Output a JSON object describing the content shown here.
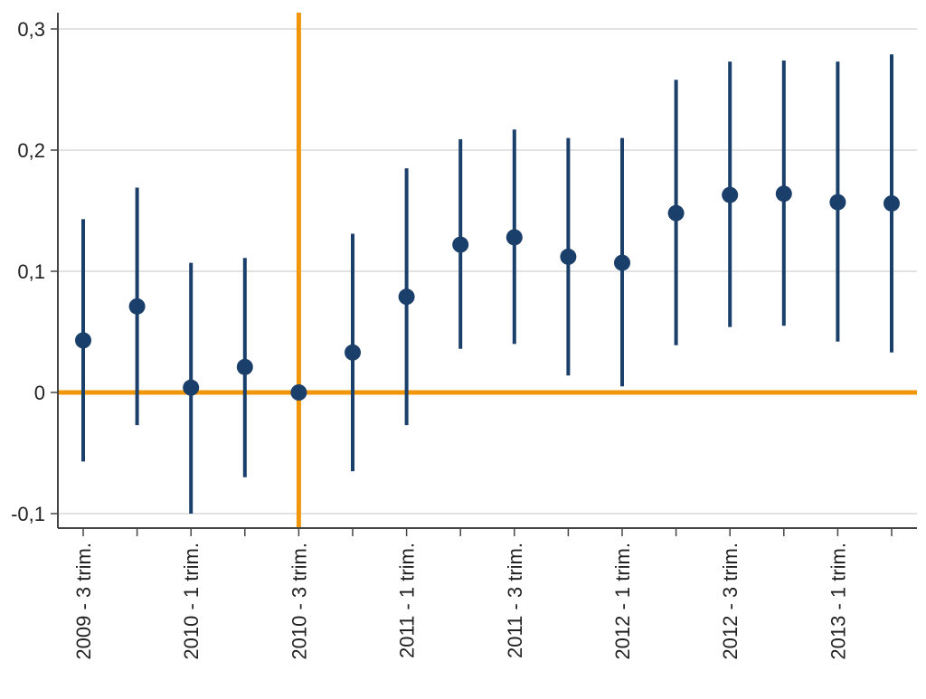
{
  "chart_data": {
    "type": "scatter",
    "subtype": "point-estimates-with-confidence-intervals",
    "title": "",
    "xlabel": "",
    "ylabel": "",
    "ylim": [
      -0.11,
      0.31
    ],
    "yticks": [
      -0.1,
      0,
      0.1,
      0.2,
      0.3
    ],
    "ytick_labels": [
      "-0,1",
      "0",
      "0,1",
      "0,2",
      "0,3"
    ],
    "grid": "horizontal",
    "legend": "none",
    "categories": [
      "2009 - 3 trim.",
      "2009 - 4 trim.",
      "2010 - 1 trim.",
      "2010 - 2 trim.",
      "2010 - 3 trim.",
      "2010 - 4 trim.",
      "2011 - 1 trim.",
      "2011 - 2 trim.",
      "2011 - 3 trim.",
      "2011 - 4 trim.",
      "2012 - 1 trim.",
      "2012 - 2 trim.",
      "2012 - 3 trim.",
      "2012 - 4 trim.",
      "2013 - 1 trim.",
      "2013 - 2 trim."
    ],
    "xtick_labels": [
      "2009 - 3 trim.",
      "",
      "2010 - 1 trim.",
      "",
      "2010 - 3 trim.",
      "",
      "2011 - 1 trim.",
      "",
      "2011 - 3 trim.",
      "",
      "2012 - 1 trim.",
      "",
      "2012 - 3 trim.",
      "",
      "2013 - 1 trim.",
      ""
    ],
    "series": [
      {
        "values": [
          0.043,
          0.071,
          0.004,
          0.021,
          0.0,
          0.033,
          0.079,
          0.122,
          0.128,
          0.112,
          0.107,
          0.148,
          0.163,
          0.164,
          0.157,
          0.156
        ],
        "lower": [
          -0.057,
          -0.027,
          -0.1,
          -0.07,
          0.0,
          -0.065,
          -0.027,
          0.036,
          0.04,
          0.014,
          0.005,
          0.039,
          0.054,
          0.055,
          0.042,
          0.033
        ],
        "upper": [
          0.143,
          0.169,
          0.107,
          0.111,
          0.0,
          0.131,
          0.185,
          0.209,
          0.217,
          0.21,
          0.21,
          0.258,
          0.273,
          0.274,
          0.273,
          0.279
        ]
      }
    ],
    "reference_lines": [
      {
        "axis": "y",
        "value": 0
      },
      {
        "axis": "x",
        "category": "2010 - 3 trim."
      }
    ],
    "colors": {
      "points": "#1b3f6b",
      "reference": "#f0960a",
      "grid": "#d9d9d9",
      "axis": "#444444"
    }
  }
}
